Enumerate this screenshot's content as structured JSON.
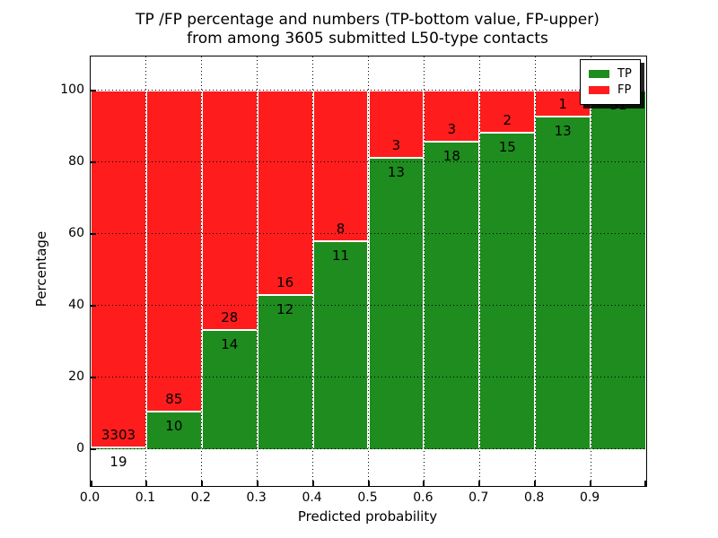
{
  "figure": {
    "title_line1": "TP /FP percentage and numbers (TP-bottom value, FP-upper)",
    "title_line2": "from among 3605 submitted L50-type contacts",
    "xlabel": "Predicted probability",
    "ylabel": "Percentage"
  },
  "legend": {
    "position": "upper right",
    "entries": [
      {
        "label": "TP",
        "color": "#1e8c1e"
      },
      {
        "label": "FP",
        "color": "#ff1c1c"
      }
    ]
  },
  "chart_data": {
    "type": "bar",
    "stacked": true,
    "title": "TP /FP percentage and numbers (TP-bottom value, FP-upper) from among 3605 submitted L50-type contacts",
    "xlabel": "Predicted probability",
    "ylabel": "Percentage",
    "total_submitted": 3605,
    "bin_width": 0.1,
    "categories": [
      "0.0-0.1",
      "0.1-0.2",
      "0.2-0.3",
      "0.3-0.4",
      "0.4-0.5",
      "0.5-0.6",
      "0.6-0.7",
      "0.7-0.8",
      "0.8-0.9",
      "0.9-1.0"
    ],
    "series": [
      {
        "name": "TP",
        "color": "#1e8c1e",
        "values": [
          19,
          10,
          14,
          12,
          11,
          13,
          18,
          15,
          13,
          31
        ]
      },
      {
        "name": "FP",
        "color": "#ff1c1c",
        "values": [
          3303,
          85,
          28,
          16,
          8,
          3,
          3,
          2,
          1,
          0
        ]
      }
    ],
    "tp_percent_of_bin": [
      0.57,
      10.53,
      33.33,
      42.86,
      57.89,
      81.25,
      85.71,
      88.24,
      92.86,
      100.0
    ],
    "bar_unit": "percent of bin total (TP+FP stacked to 100%)",
    "xlim": [
      0.0,
      1.0
    ],
    "ylim": [
      -10.3,
      109.5
    ],
    "xtick_labels": [
      "0.0",
      "0.1",
      "0.2",
      "0.3",
      "0.4",
      "0.5",
      "0.6",
      "0.7",
      "0.8",
      "0.9"
    ],
    "ytick_values": [
      0,
      20,
      40,
      60,
      80,
      100
    ],
    "ytick_labels": [
      "0",
      "20",
      "40",
      "60",
      "80",
      "100"
    ],
    "grid": "dotted",
    "bar_edge_color": "#ffffff",
    "legend_position": "upper right"
  }
}
